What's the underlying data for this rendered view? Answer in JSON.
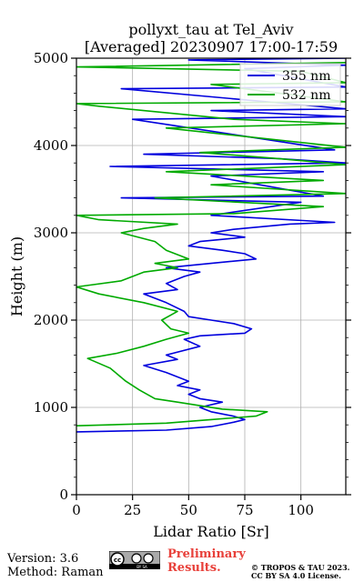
{
  "chart_data": {
    "type": "line",
    "title": "pollyxt_tau at Tel_Aviv",
    "subtitle": "[Averaged] 20230907 17:00-17:59",
    "xlabel": "Lidar Ratio [Sr]",
    "ylabel": "Height (m)",
    "xlim": [
      0,
      120
    ],
    "ylim": [
      0,
      5000
    ],
    "xticks": [
      0,
      25,
      50,
      75,
      100
    ],
    "yticks": [
      0,
      1000,
      2000,
      3000,
      4000,
      5000
    ],
    "grid": true,
    "legend_position": "top-right",
    "series": [
      {
        "name": "355 nm",
        "color": "#0000dd",
        "points": [
          [
            0,
            720
          ],
          [
            40,
            740
          ],
          [
            60,
            780
          ],
          [
            70,
            830
          ],
          [
            75,
            860
          ],
          [
            70,
            900
          ],
          [
            60,
            950
          ],
          [
            55,
            1000
          ],
          [
            65,
            1060
          ],
          [
            55,
            1100
          ],
          [
            50,
            1150
          ],
          [
            55,
            1200
          ],
          [
            45,
            1250
          ],
          [
            50,
            1300
          ],
          [
            40,
            1400
          ],
          [
            30,
            1480
          ],
          [
            45,
            1550
          ],
          [
            40,
            1600
          ],
          [
            55,
            1700
          ],
          [
            48,
            1780
          ],
          [
            55,
            1820
          ],
          [
            75,
            1850
          ],
          [
            78,
            1900
          ],
          [
            70,
            1960
          ],
          [
            60,
            2000
          ],
          [
            50,
            2040
          ],
          [
            48,
            2100
          ],
          [
            40,
            2200
          ],
          [
            30,
            2300
          ],
          [
            45,
            2350
          ],
          [
            40,
            2420
          ],
          [
            48,
            2500
          ],
          [
            55,
            2550
          ],
          [
            40,
            2600
          ],
          [
            60,
            2650
          ],
          [
            80,
            2700
          ],
          [
            75,
            2760
          ],
          [
            65,
            2800
          ],
          [
            50,
            2850
          ],
          [
            55,
            2900
          ],
          [
            75,
            2950
          ],
          [
            60,
            3000
          ],
          [
            70,
            3040
          ],
          [
            95,
            3100
          ],
          [
            115,
            3120
          ],
          [
            60,
            3200
          ],
          [
            100,
            3350
          ],
          [
            20,
            3400
          ],
          [
            110,
            3420
          ],
          [
            60,
            3650
          ],
          [
            110,
            3700
          ],
          [
            15,
            3760
          ],
          [
            120,
            3800
          ],
          [
            90,
            3850
          ],
          [
            30,
            3900
          ],
          [
            115,
            3950
          ],
          [
            25,
            4300
          ],
          [
            120,
            4330
          ],
          [
            60,
            4400
          ],
          [
            120,
            4420
          ],
          [
            20,
            4650
          ],
          [
            120,
            4670
          ],
          [
            75,
            4880
          ],
          [
            120,
            4920
          ],
          [
            50,
            4980
          ],
          [
            120,
            5000
          ]
        ]
      },
      {
        "name": "532 nm",
        "color": "#00aa00",
        "points": [
          [
            0,
            790
          ],
          [
            40,
            820
          ],
          [
            60,
            860
          ],
          [
            70,
            880
          ],
          [
            80,
            900
          ],
          [
            85,
            950
          ],
          [
            65,
            980
          ],
          [
            55,
            1020
          ],
          [
            45,
            1060
          ],
          [
            35,
            1100
          ],
          [
            28,
            1200
          ],
          [
            22,
            1300
          ],
          [
            15,
            1450
          ],
          [
            5,
            1560
          ],
          [
            18,
            1620
          ],
          [
            30,
            1700
          ],
          [
            40,
            1780
          ],
          [
            50,
            1850
          ],
          [
            42,
            1900
          ],
          [
            38,
            2000
          ],
          [
            45,
            2100
          ],
          [
            30,
            2200
          ],
          [
            10,
            2300
          ],
          [
            0,
            2380
          ],
          [
            20,
            2450
          ],
          [
            30,
            2550
          ],
          [
            45,
            2600
          ],
          [
            35,
            2650
          ],
          [
            50,
            2700
          ],
          [
            40,
            2800
          ],
          [
            35,
            2900
          ],
          [
            20,
            3000
          ],
          [
            30,
            3050
          ],
          [
            45,
            3100
          ],
          [
            10,
            3150
          ],
          [
            0,
            3200
          ],
          [
            70,
            3220
          ],
          [
            110,
            3300
          ],
          [
            35,
            3400
          ],
          [
            120,
            3450
          ],
          [
            60,
            3550
          ],
          [
            110,
            3600
          ],
          [
            40,
            3700
          ],
          [
            120,
            3780
          ],
          [
            90,
            3850
          ],
          [
            55,
            3920
          ],
          [
            120,
            3980
          ],
          [
            40,
            4200
          ],
          [
            120,
            4250
          ],
          [
            70,
            4300
          ],
          [
            10,
            4450
          ],
          [
            0,
            4480
          ],
          [
            120,
            4500
          ],
          [
            60,
            4700
          ],
          [
            120,
            4720
          ],
          [
            100,
            4850
          ],
          [
            0,
            4900
          ],
          [
            120,
            4950
          ]
        ]
      }
    ]
  },
  "footer": {
    "version": "Version: 3.6",
    "method": "Method: Raman",
    "preliminary_line1": "Preliminary",
    "preliminary_line2": "Results.",
    "copyright_line1": "© TROPOS & TAU 2023.",
    "copyright_line2": "CC BY SA 4.0 License."
  },
  "license_logo": {
    "icon": "cc-by-sa-icon",
    "text": "BY SA"
  }
}
